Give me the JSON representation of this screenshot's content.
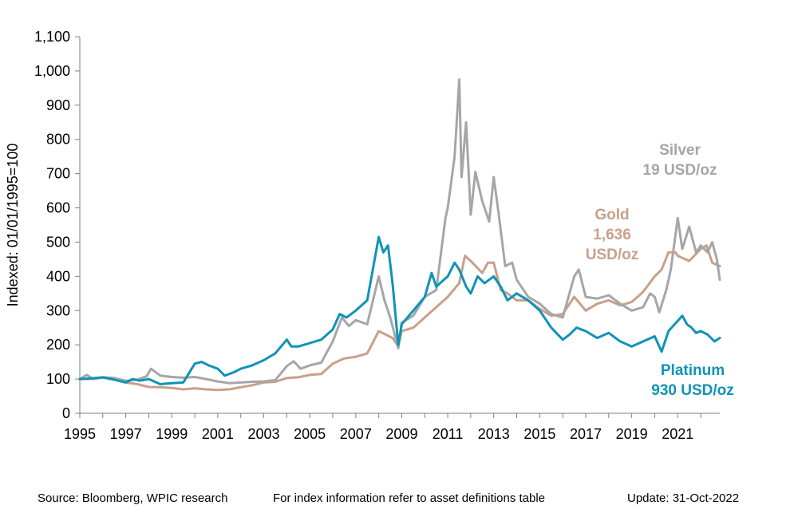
{
  "chart_data": {
    "type": "line",
    "ylabel": "Indexed: 01/01/1995=100",
    "ylim": [
      0,
      1100
    ],
    "yticks": [
      0,
      100,
      200,
      300,
      400,
      500,
      600,
      700,
      800,
      900,
      1000,
      1100
    ],
    "ytick_labels": [
      "0",
      "100",
      "200",
      "300",
      "400",
      "500",
      "600",
      "700",
      "800",
      "900",
      "1,000",
      "1,100"
    ],
    "xlim": [
      1995,
      2022.83
    ],
    "xticks": [
      1995,
      1997,
      1999,
      2001,
      2003,
      2005,
      2007,
      2009,
      2011,
      2013,
      2015,
      2017,
      2019,
      2021
    ],
    "xtick_labels": [
      "1995",
      "1997",
      "1999",
      "2001",
      "2003",
      "2005",
      "2007",
      "2009",
      "2011",
      "2013",
      "2015",
      "2017",
      "2019",
      "2021"
    ],
    "grid": false,
    "series": [
      {
        "name": "Gold",
        "label_lines": [
          "Gold",
          "1,636",
          "USD/oz"
        ],
        "color": "#C8A08A",
        "x": [
          1995.0,
          1995.5,
          1996.0,
          1996.5,
          1997.0,
          1997.5,
          1998.0,
          1998.5,
          1999.0,
          1999.5,
          2000.0,
          2000.5,
          2001.0,
          2001.5,
          2002.0,
          2002.5,
          2003.0,
          2003.5,
          2004.0,
          2004.5,
          2005.0,
          2005.5,
          2006.0,
          2006.5,
          2007.0,
          2007.5,
          2008.0,
          2008.3,
          2008.6,
          2008.85,
          2009.0,
          2009.5,
          2010.0,
          2010.5,
          2011.0,
          2011.5,
          2011.75,
          2012.0,
          2012.5,
          2012.75,
          2013.0,
          2013.3,
          2013.6,
          2014.0,
          2014.5,
          2015.0,
          2015.5,
          2016.0,
          2016.5,
          2017.0,
          2017.5,
          2018.0,
          2018.5,
          2019.0,
          2019.5,
          2020.0,
          2020.3,
          2020.6,
          2020.9,
          2021.0,
          2021.5,
          2022.0,
          2022.25,
          2022.5,
          2022.83
        ],
        "values": [
          100,
          101,
          104,
          100,
          90,
          85,
          77,
          76,
          74,
          70,
          73,
          70,
          68,
          70,
          76,
          82,
          90,
          92,
          103,
          105,
          112,
          115,
          145,
          160,
          165,
          175,
          240,
          230,
          220,
          195,
          240,
          250,
          280,
          310,
          340,
          380,
          460,
          445,
          410,
          440,
          440,
          360,
          350,
          330,
          330,
          305,
          285,
          290,
          340,
          300,
          320,
          330,
          315,
          325,
          355,
          400,
          420,
          470,
          470,
          460,
          445,
          480,
          490,
          440,
          430
        ]
      },
      {
        "name": "Silver",
        "label_lines": [
          "Silver",
          "19 USD/oz"
        ],
        "color": "#A6A6A6",
        "x": [
          1995.0,
          1995.3,
          1995.6,
          1996.0,
          1996.5,
          1997.0,
          1997.5,
          1997.9,
          1998.1,
          1998.5,
          1999.0,
          1999.5,
          2000.0,
          2000.5,
          2001.0,
          2001.5,
          2002.0,
          2002.5,
          2003.0,
          2003.5,
          2004.0,
          2004.3,
          2004.6,
          2005.0,
          2005.5,
          2006.0,
          2006.4,
          2006.7,
          2007.0,
          2007.5,
          2008.0,
          2008.25,
          2008.5,
          2008.85,
          2009.0,
          2009.5,
          2010.0,
          2010.5,
          2010.9,
          2011.0,
          2011.3,
          2011.5,
          2011.6,
          2011.8,
          2012.0,
          2012.2,
          2012.5,
          2012.8,
          2013.0,
          2013.2,
          2013.5,
          2013.8,
          2014.0,
          2014.5,
          2015.0,
          2015.5,
          2016.0,
          2016.5,
          2016.7,
          2017.0,
          2017.5,
          2018.0,
          2018.5,
          2019.0,
          2019.5,
          2019.8,
          2020.0,
          2020.2,
          2020.5,
          2020.7,
          2021.0,
          2021.2,
          2021.5,
          2021.8,
          2022.0,
          2022.3,
          2022.5,
          2022.7,
          2022.83
        ],
        "values": [
          100,
          112,
          100,
          105,
          103,
          95,
          98,
          108,
          130,
          110,
          106,
          104,
          106,
          100,
          93,
          88,
          90,
          92,
          93,
          97,
          138,
          152,
          130,
          140,
          148,
          210,
          280,
          255,
          272,
          260,
          400,
          330,
          280,
          190,
          265,
          285,
          340,
          360,
          570,
          600,
          750,
          975,
          690,
          850,
          580,
          705,
          620,
          560,
          690,
          590,
          430,
          440,
          390,
          340,
          320,
          290,
          280,
          400,
          420,
          340,
          335,
          345,
          320,
          300,
          310,
          350,
          340,
          295,
          360,
          420,
          570,
          480,
          545,
          470,
          490,
          470,
          500,
          450,
          390
        ]
      },
      {
        "name": "Platinum",
        "label_lines": [
          "Platinum",
          "930 USD/oz"
        ],
        "color": "#0E93B8",
        "x": [
          1995.0,
          1995.5,
          1996.0,
          1996.5,
          1997.0,
          1997.3,
          1997.6,
          1998.0,
          1998.5,
          1999.0,
          1999.5,
          2000.0,
          2000.3,
          2000.6,
          2001.0,
          2001.3,
          2001.7,
          2002.0,
          2002.5,
          2003.0,
          2003.5,
          2004.0,
          2004.2,
          2004.5,
          2005.0,
          2005.5,
          2006.0,
          2006.3,
          2006.6,
          2007.0,
          2007.5,
          2008.0,
          2008.2,
          2008.4,
          2008.6,
          2008.85,
          2009.0,
          2009.5,
          2010.0,
          2010.3,
          2010.5,
          2011.0,
          2011.3,
          2011.5,
          2011.8,
          2012.0,
          2012.3,
          2012.6,
          2013.0,
          2013.3,
          2013.6,
          2014.0,
          2014.5,
          2015.0,
          2015.5,
          2016.0,
          2016.3,
          2016.6,
          2017.0,
          2017.5,
          2018.0,
          2018.5,
          2019.0,
          2019.5,
          2020.0,
          2020.3,
          2020.6,
          2021.0,
          2021.2,
          2021.4,
          2021.6,
          2021.8,
          2022.0,
          2022.3,
          2022.6,
          2022.83
        ],
        "values": [
          100,
          102,
          105,
          98,
          90,
          100,
          95,
          100,
          85,
          88,
          90,
          145,
          150,
          140,
          130,
          110,
          120,
          130,
          140,
          155,
          175,
          215,
          195,
          195,
          205,
          215,
          245,
          290,
          280,
          300,
          330,
          515,
          470,
          490,
          380,
          200,
          260,
          300,
          340,
          410,
          370,
          400,
          440,
          420,
          370,
          350,
          400,
          380,
          400,
          370,
          330,
          350,
          330,
          300,
          250,
          215,
          230,
          250,
          240,
          220,
          235,
          210,
          195,
          210,
          225,
          180,
          240,
          270,
          285,
          260,
          250,
          235,
          240,
          230,
          210,
          220
        ]
      }
    ]
  },
  "footer": {
    "source": "Source: Bloomberg, WPIC research",
    "note": "For index information refer to asset definitions table",
    "update": "Update: 31-Oct-2022"
  }
}
